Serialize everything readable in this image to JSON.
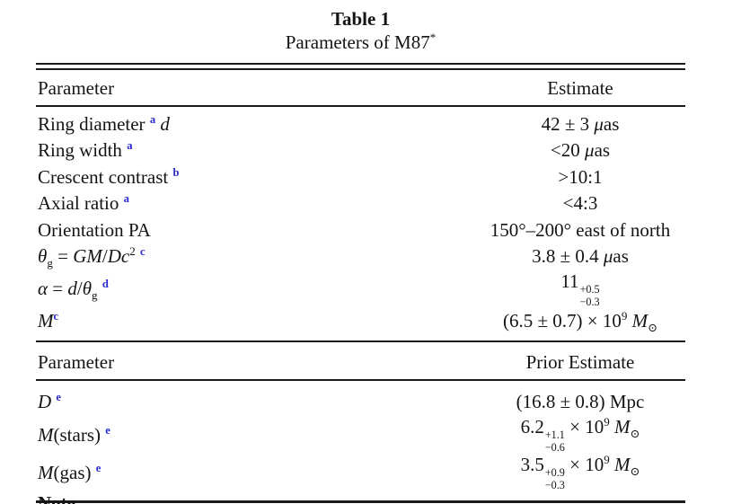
{
  "colors": {
    "background": "#ffffff",
    "text": "#141414",
    "rule": "#1a1a1a",
    "footnote_accent": "#2a2ad2"
  },
  "title": {
    "heading": "Table 1",
    "subtitle_html": "Parameters of M87<sup>*</sup>"
  },
  "section1": {
    "col_parameter": "Parameter",
    "col_estimate": "Estimate",
    "rows": [
      {
        "parameter_html": "Ring diameter <sup class='fn'>a</sup> <i>d</i>",
        "estimate_html": "42 ± 3 <i>μ</i>as"
      },
      {
        "parameter_html": "Ring width <sup class='fn'>a</sup>",
        "estimate_html": "&lt;20 <i>μ</i>as"
      },
      {
        "parameter_html": "Crescent contrast <sup class='fn'>b</sup>",
        "estimate_html": "&gt;10:1"
      },
      {
        "parameter_html": "Axial ratio <sup class='fn'>a</sup>",
        "estimate_html": "&lt;4:3"
      },
      {
        "parameter_html": "Orientation PA",
        "estimate_html": "150°–200° east of north"
      },
      {
        "parameter_html": "<i>θ</i><sub>g</sub> = <i>GM</i>/<i>Dc</i><sup>2</sup> <sup class='fn'>c</sup>",
        "estimate_html": "3.8 ± 0.4 <i>μ</i>as"
      },
      {
        "parameter_html": "<i>α</i> = <i>d</i>/<i>θ</i><sub>g</sub> <sup class='fn'>d</sup>",
        "estimate_html": "11<span class='supsub'><span>+0.5</span><span>−0.3</span></span>"
      },
      {
        "parameter_html": "<i>M</i><sup class='fn'>c</sup>",
        "estimate_html": "(6.5 ± 0.7) × 10<sup>9</sup> <i>M</i><sub>⊙</sub>"
      }
    ]
  },
  "section2": {
    "col_parameter": "Parameter",
    "col_estimate": "Prior Estimate",
    "rows": [
      {
        "parameter_html": "<i>D</i> <sup class='fn'>e</sup>",
        "estimate_html": "(16.8 ± 0.8) Mpc"
      },
      {
        "parameter_html": "<i>M</i>(stars) <sup class='fn'>e</sup>",
        "estimate_html": "6.2<span class='supsub'><span>+1.1</span><span>−0.6</span></span> × 10<sup>9</sup> <i>M</i><sub>⊙</sub>"
      },
      {
        "parameter_html": "<i>M</i>(gas) <sup class='fn'>e</sup>",
        "estimate_html": "3.5<span class='supsub'><span>+0.9</span><span>−0.3</span></span> × 10<sup>9</sup> <i>M</i><sub>⊙</sub>"
      }
    ]
  },
  "footer": {
    "note_label": "Note."
  }
}
